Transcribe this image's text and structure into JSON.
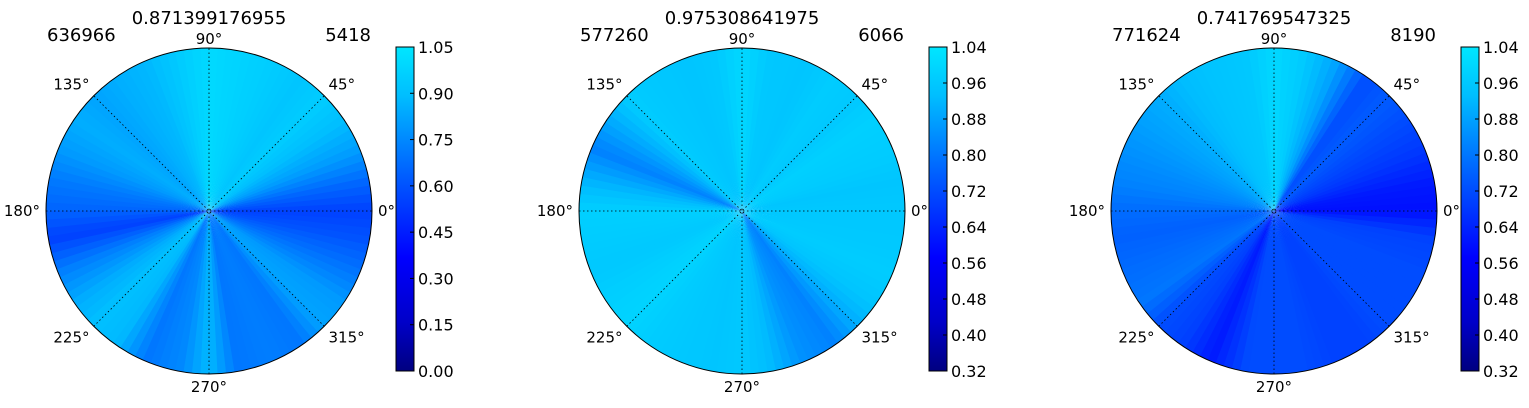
{
  "chart_data": [
    {
      "type": "polar-contour",
      "title": "0.871399176955",
      "left_label": "636966",
      "right_label": "5418",
      "angle_labels": [
        "0°",
        "45°",
        "90°",
        "135°",
        "180°",
        "225°",
        "270°",
        "315°"
      ],
      "colorbar": {
        "ticks": [
          "0.00",
          "0.15",
          "0.30",
          "0.45",
          "0.60",
          "0.75",
          "0.90",
          "1.05"
        ],
        "range": [
          0.0,
          1.05
        ]
      },
      "angular_profile": {
        "angle_deg": [
          0,
          10,
          22,
          35,
          45,
          55,
          67,
          80,
          90,
          100,
          112,
          125,
          135,
          145,
          157,
          170,
          180,
          190,
          202,
          215,
          225,
          235,
          247,
          260,
          270,
          280,
          292,
          305,
          315,
          325,
          337,
          350
        ],
        "value": [
          0.55,
          0.65,
          0.8,
          0.9,
          0.95,
          0.92,
          0.95,
          0.98,
          1.0,
          0.95,
          0.88,
          0.85,
          0.82,
          0.85,
          0.8,
          0.7,
          0.65,
          0.55,
          0.72,
          0.85,
          0.9,
          0.88,
          0.7,
          0.75,
          0.88,
          0.7,
          0.72,
          0.7,
          0.82,
          0.8,
          0.7,
          0.6
        ]
      }
    },
    {
      "type": "polar-contour",
      "title": "0.975308641975",
      "left_label": "577260",
      "right_label": "6066",
      "angle_labels": [
        "0°",
        "45°",
        "90°",
        "135°",
        "180°",
        "225°",
        "270°",
        "315°"
      ],
      "colorbar": {
        "ticks": [
          "0.32",
          "0.40",
          "0.48",
          "0.56",
          "0.64",
          "0.72",
          "0.80",
          "0.88",
          "0.96",
          "1.04"
        ],
        "range": [
          0.32,
          1.04
        ]
      },
      "angular_profile": {
        "angle_deg": [
          0,
          10,
          22,
          35,
          45,
          55,
          67,
          80,
          90,
          100,
          112,
          125,
          135,
          145,
          157,
          170,
          180,
          190,
          202,
          215,
          225,
          235,
          247,
          260,
          270,
          280,
          292,
          305,
          315,
          325,
          337,
          350
        ],
        "value": [
          0.96,
          0.95,
          0.97,
          0.98,
          0.96,
          0.97,
          0.95,
          0.96,
          1.0,
          0.96,
          0.95,
          0.96,
          0.97,
          0.9,
          0.82,
          0.92,
          0.98,
          0.97,
          0.96,
          0.98,
          0.99,
          0.97,
          0.96,
          0.95,
          0.96,
          0.93,
          0.85,
          0.82,
          0.9,
          0.95,
          0.97,
          0.96
        ]
      }
    },
    {
      "type": "polar-contour",
      "title": "0.741769547325",
      "left_label": "771624",
      "right_label": "8190",
      "angle_labels": [
        "0°",
        "45°",
        "90°",
        "135°",
        "180°",
        "225°",
        "270°",
        "315°"
      ],
      "colorbar": {
        "ticks": [
          "0.32",
          "0.40",
          "0.48",
          "0.56",
          "0.64",
          "0.72",
          "0.80",
          "0.88",
          "0.96",
          "1.04"
        ],
        "range": [
          0.32,
          1.04
        ]
      },
      "angular_profile": {
        "angle_deg": [
          0,
          10,
          22,
          35,
          45,
          55,
          67,
          80,
          90,
          100,
          112,
          125,
          135,
          145,
          157,
          170,
          180,
          190,
          202,
          215,
          225,
          235,
          247,
          260,
          270,
          280,
          292,
          305,
          315,
          325,
          337,
          350
        ],
        "value": [
          0.6,
          0.62,
          0.68,
          0.72,
          0.75,
          0.72,
          0.88,
          0.97,
          1.0,
          0.96,
          0.95,
          0.93,
          0.9,
          0.88,
          0.85,
          0.82,
          0.78,
          0.76,
          0.78,
          0.8,
          0.72,
          0.7,
          0.62,
          0.72,
          0.72,
          0.72,
          0.7,
          0.7,
          0.72,
          0.72,
          0.72,
          0.7
        ]
      }
    }
  ]
}
